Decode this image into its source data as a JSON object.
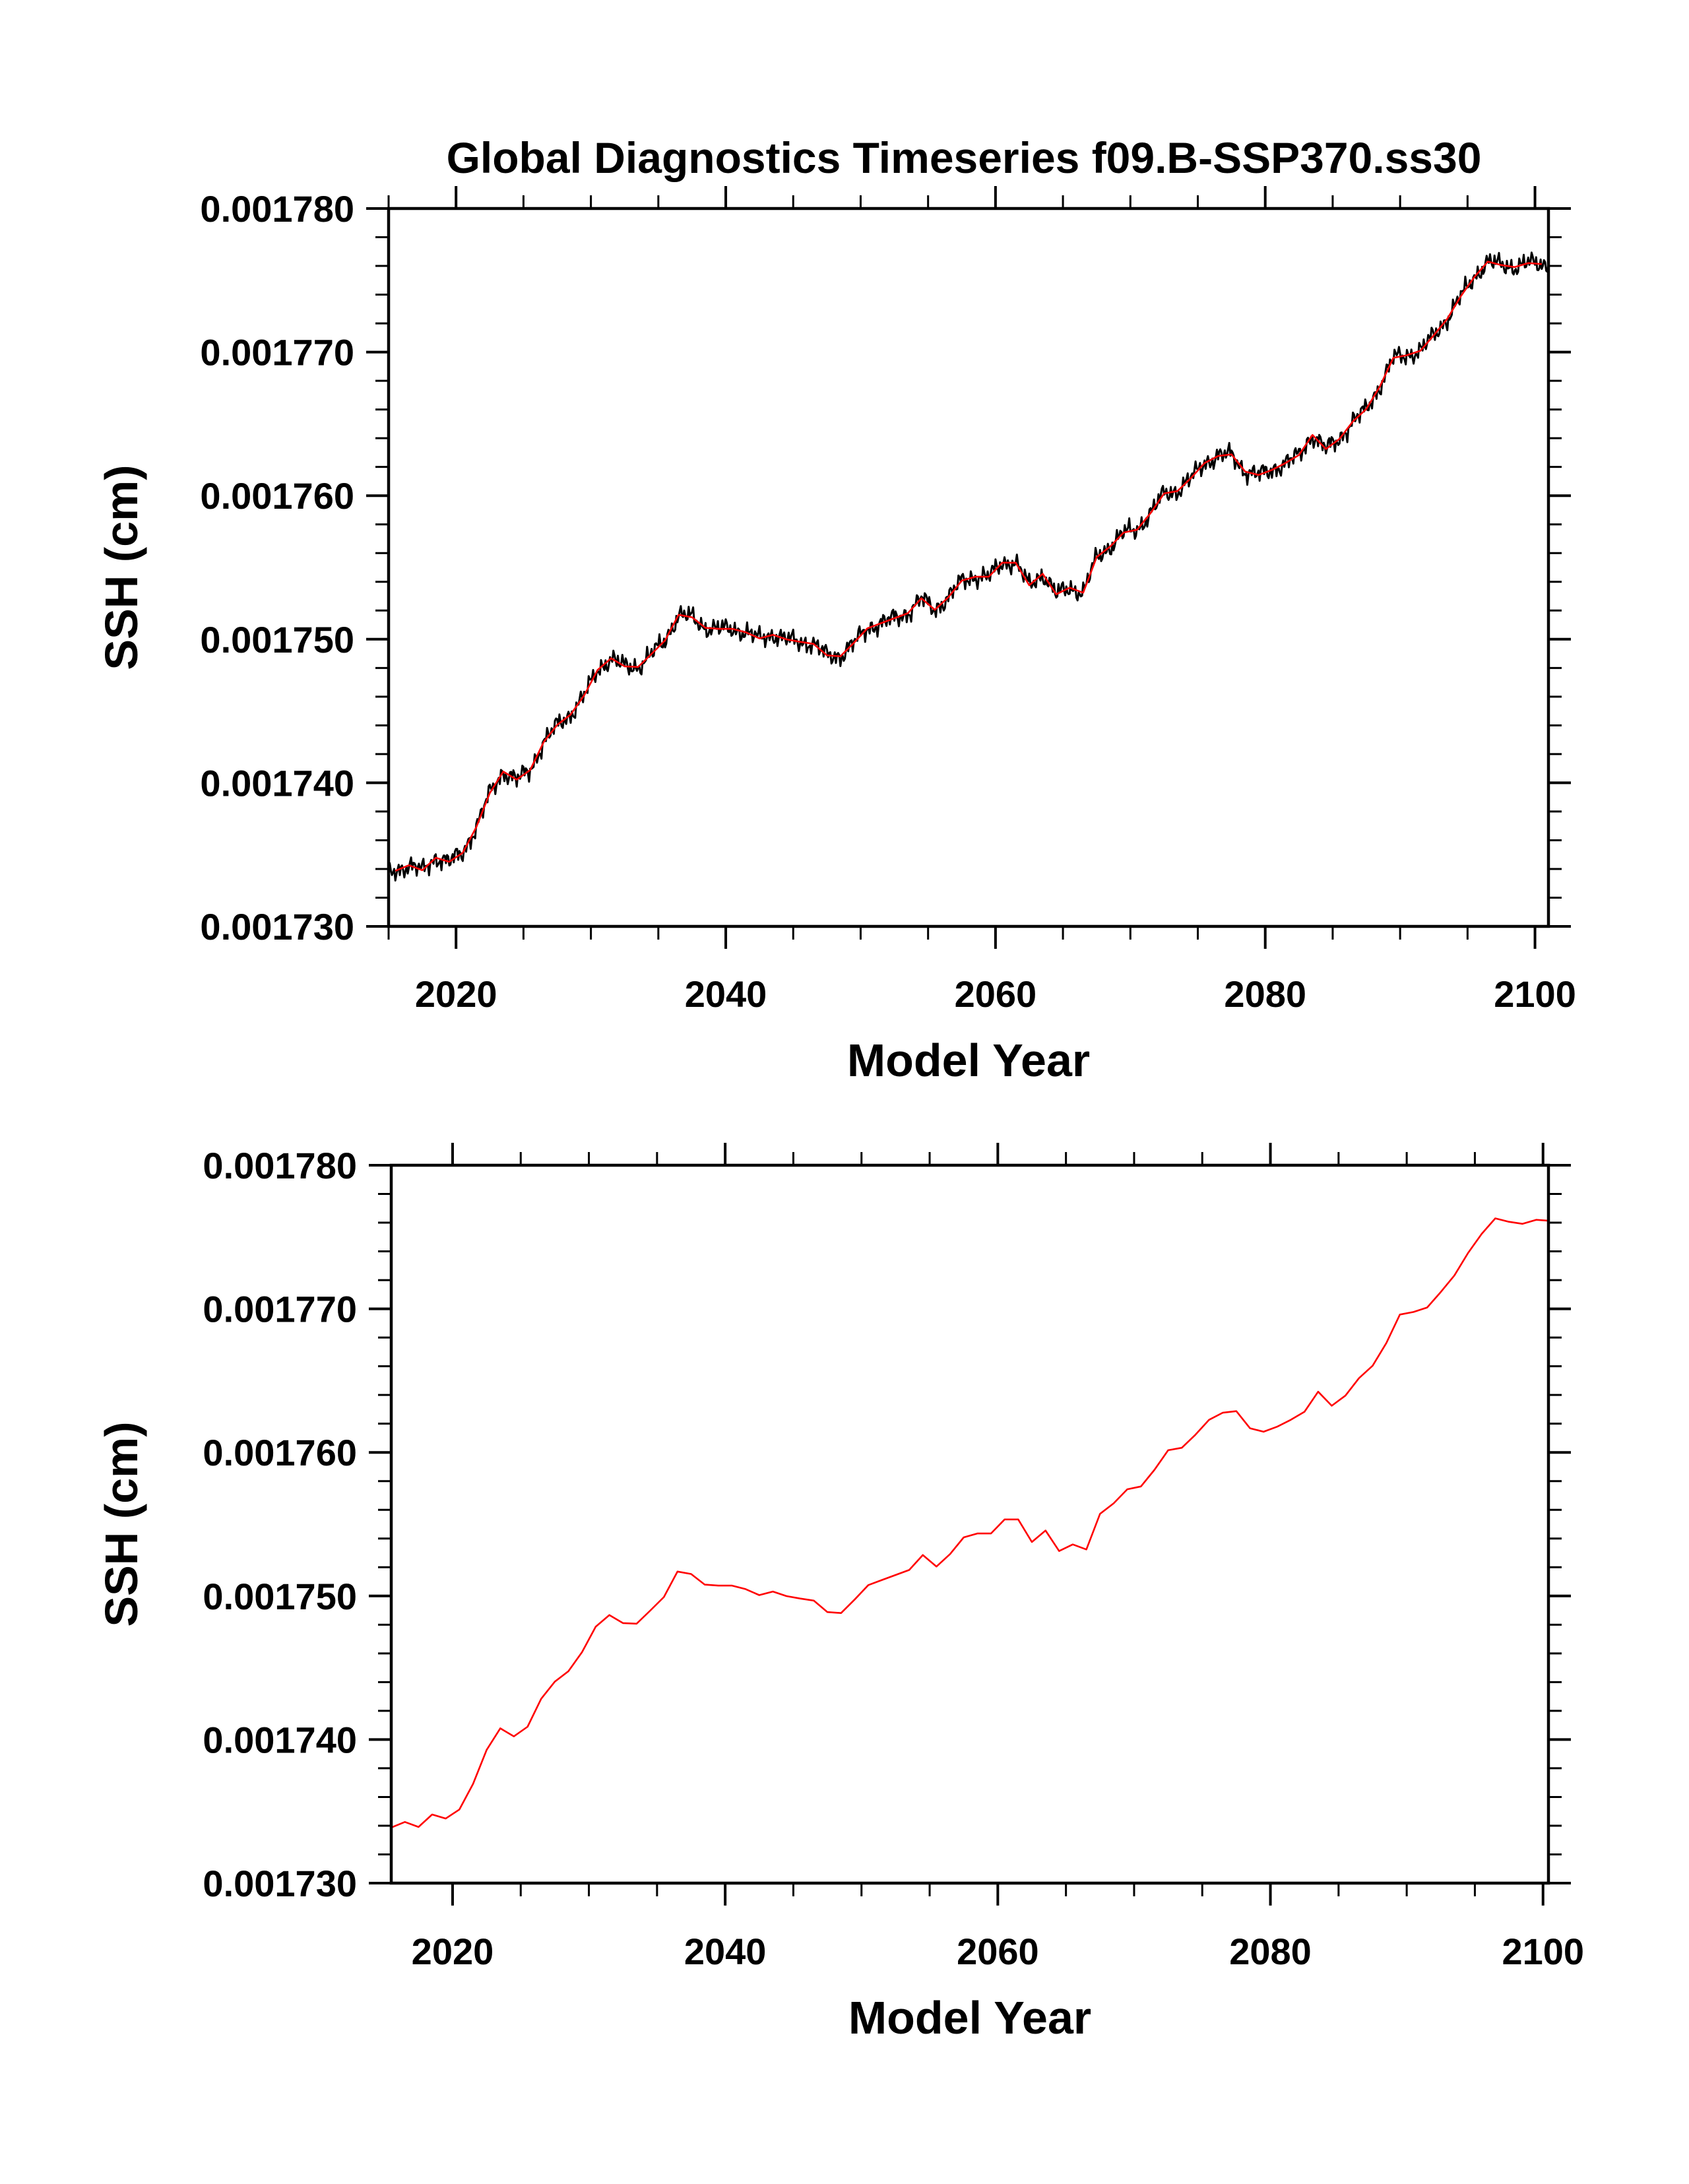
{
  "title": "Global Diagnostics Timeseries f09.B-SSP370.ss30",
  "chart_data": [
    {
      "type": "line",
      "title": "Global Diagnostics Timeseries f09.B-SSP370.ss30",
      "xlabel": "Model Year",
      "ylabel": "SSH (cm)",
      "xlim": [
        2015,
        2101
      ],
      "ylim": [
        0.00173,
        0.00178
      ],
      "xticks": [
        2020,
        2040,
        2060,
        2080,
        2100
      ],
      "xtick_labels": [
        "2020",
        "2040",
        "2060",
        "2080",
        "2100"
      ],
      "yticks": [
        0.00173,
        0.00174,
        0.00175,
        0.00176,
        0.00177,
        0.00178
      ],
      "ytick_labels": [
        "0.001730",
        "0.001740",
        "0.001750",
        "0.001760",
        "0.001770",
        "0.001780"
      ],
      "grid": false,
      "series": [
        {
          "name": "monthly",
          "color": "#000000",
          "derived_from": "annual",
          "note": "monthly noisy series around annual mean"
        },
        {
          "name": "annual",
          "color": "#ff0000",
          "ref": "annual_series"
        }
      ]
    },
    {
      "type": "line",
      "title": "",
      "xlabel": "Model Year",
      "ylabel": "SSH (cm)",
      "xlim": [
        2015.5,
        2100.4
      ],
      "ylim": [
        0.00173,
        0.00178
      ],
      "xticks": [
        2020,
        2040,
        2060,
        2080,
        2100
      ],
      "xtick_labels": [
        "2020",
        "2040",
        "2060",
        "2080",
        "2100"
      ],
      "yticks": [
        0.00173,
        0.00174,
        0.00175,
        0.00176,
        0.00177,
        0.00178
      ],
      "ytick_labels": [
        "0.001730",
        "0.001740",
        "0.001750",
        "0.001760",
        "0.001770",
        "0.001780"
      ],
      "grid": false,
      "series": [
        {
          "name": "annual",
          "color": "#ff0000",
          "ref": "annual_series"
        }
      ]
    }
  ],
  "annual_series": {
    "x_start": 2015.5,
    "x_step": 1,
    "values": [
      0.00173387,
      0.00173426,
      0.00173391,
      0.00173478,
      0.0017345,
      0.00173513,
      0.00173691,
      0.00173928,
      0.00174078,
      0.00174022,
      0.00174089,
      0.00174284,
      0.00174403,
      0.00174476,
      0.00174609,
      0.00174786,
      0.00174867,
      0.00174811,
      0.00174807,
      0.00174898,
      0.00174992,
      0.0017517,
      0.00175153,
      0.00175079,
      0.00175072,
      0.00175072,
      0.00175048,
      0.00175006,
      0.00175031,
      0.00174999,
      0.00174982,
      0.00174968,
      0.00174888,
      0.00174881,
      0.00174975,
      0.00175076,
      0.00175111,
      0.00175146,
      0.00175181,
      0.00175285,
      0.00175205,
      0.00175292,
      0.00175408,
      0.00175435,
      0.00175435,
      0.00175533,
      0.00175533,
      0.00175376,
      0.00175456,
      0.00175313,
      0.00175359,
      0.00175324,
      0.00175572,
      0.00175645,
      0.00175743,
      0.00175763,
      0.00175879,
      0.00176015,
      0.00176032,
      0.00176123,
      0.00176227,
      0.00176276,
      0.00176287,
      0.00176168,
      0.00176144,
      0.00176179,
      0.00176227,
      0.00176283,
      0.00176423,
      0.00176325,
      0.00176395,
      0.00176517,
      0.00176604,
      0.00176761,
      0.0017696,
      0.00176978,
      0.00177009,
      0.00177117,
      0.00177232,
      0.00177389,
      0.00177522,
      0.0017763,
      0.00177606,
      0.00177592,
      0.0017762,
      0.00177613
    ]
  }
}
